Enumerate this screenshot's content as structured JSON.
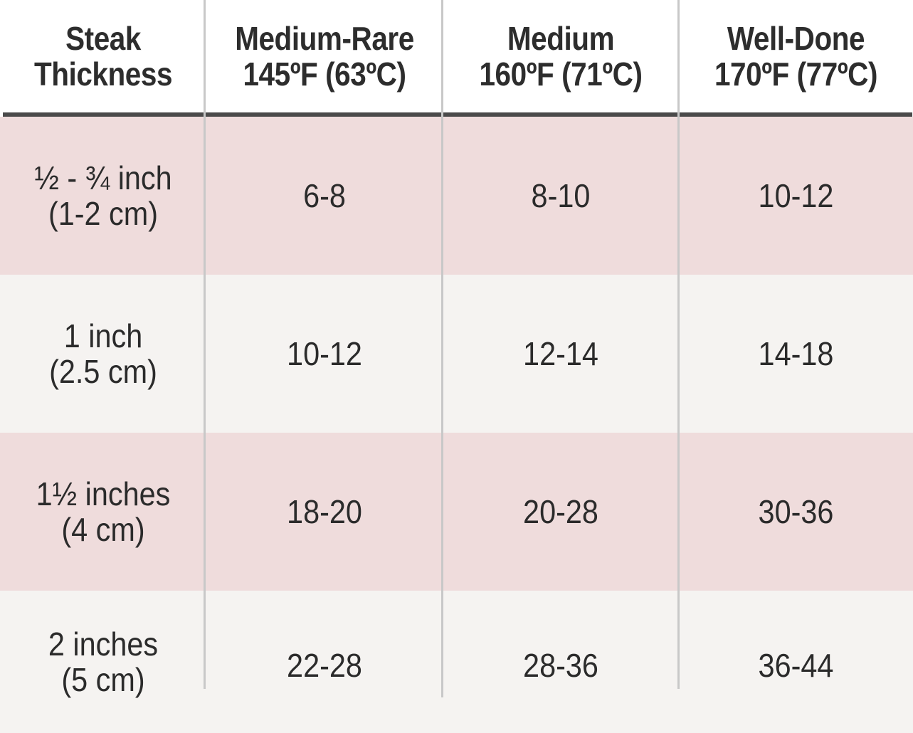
{
  "table": {
    "headers": [
      [
        "Steak",
        "Thickness"
      ],
      [
        "Medium-Rare",
        "145ºF (63ºC)"
      ],
      [
        "Medium",
        "160ºF (71ºC)"
      ],
      [
        "Well-Done",
        "170ºF (77ºC)"
      ]
    ],
    "rows": [
      {
        "thickness": [
          "½ - ¾ inch",
          "(1-2 cm)"
        ],
        "medium_rare": "6-8",
        "medium": "8-10",
        "well_done": "10-12"
      },
      {
        "thickness": [
          "1 inch",
          "(2.5 cm)"
        ],
        "medium_rare": "10-12",
        "medium": "12-14",
        "well_done": "14-18"
      },
      {
        "thickness": [
          "1½ inches",
          "(4 cm)"
        ],
        "medium_rare": "18-20",
        "medium": "20-28",
        "well_done": "30-36"
      },
      {
        "thickness": [
          "2 inches",
          "(5 cm)"
        ],
        "medium_rare": "22-28",
        "medium": "28-36",
        "well_done": "36-44"
      }
    ]
  },
  "colors": {
    "row_pink": "#efdcdc",
    "row_light": "#f5f3f1",
    "header_rule": "#4a4a4a",
    "divider": "#c8c8c8",
    "text": "#2b2b2b"
  }
}
